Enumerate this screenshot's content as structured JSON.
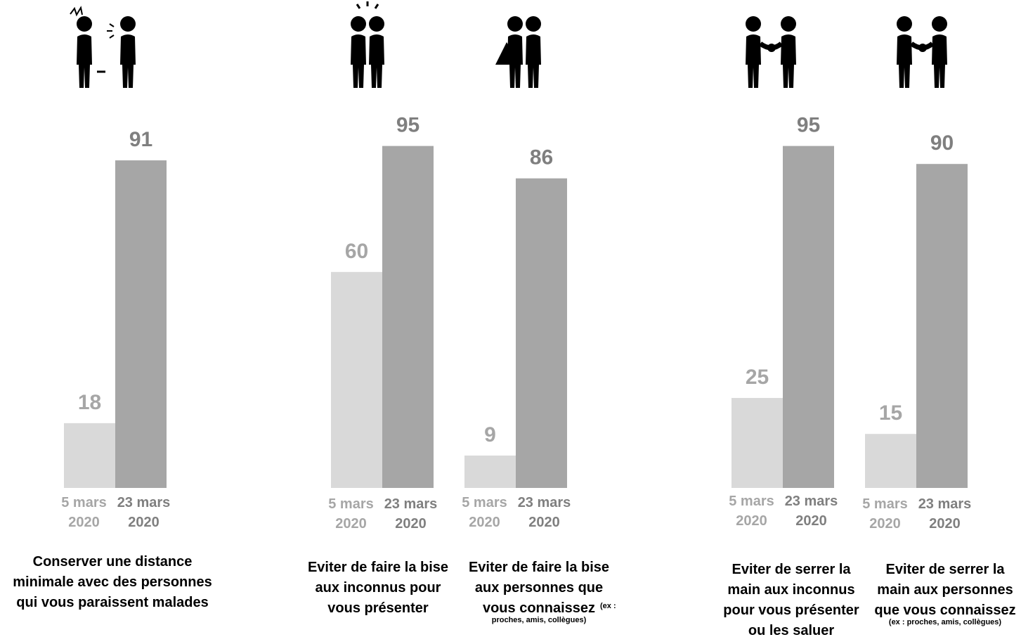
{
  "colors": {
    "before": "#d9d9d9",
    "after": "#a6a6a6",
    "before_text": "#a6a6a6",
    "after_text": "#7f7f7f",
    "icon": "#000000"
  },
  "chart_data": {
    "type": "bar",
    "series": [
      {
        "name": "5 mars 2020",
        "date_line1": "5 mars",
        "date_line2": "2020"
      },
      {
        "name": "23 mars 2020",
        "date_line1": "23 mars",
        "date_line2": "2020"
      }
    ],
    "groups": [
      {
        "icon": "distance-sick-icon",
        "values": [
          18,
          91
        ],
        "caption": [
          "Conserver une distance",
          "minimale avec des personnes",
          "qui vous paraissent malades"
        ],
        "caption_note": ""
      },
      {
        "icon": "kiss-strangers-icon",
        "values": [
          60,
          95
        ],
        "caption": [
          "Eviter de faire la bise",
          "aux inconnus pour",
          "vous présenter"
        ],
        "caption_note": ""
      },
      {
        "icon": "kiss-known-icon",
        "values": [
          9,
          86
        ],
        "caption": [
          "Eviter de faire la bise",
          "aux personnes que",
          "vous connaissez"
        ],
        "caption_note": "(ex :",
        "caption_note2": "proches, amis, collègues)"
      },
      {
        "icon": "handshake-strangers-icon",
        "values": [
          25,
          95
        ],
        "caption": [
          "Eviter de serrer la",
          "main aux inconnus",
          "pour vous présenter",
          "ou les saluer"
        ],
        "caption_note": ""
      },
      {
        "icon": "handshake-known-icon",
        "values": [
          15,
          90
        ],
        "caption": [
          "Eviter de serrer la",
          "main aux personnes",
          "que vous connaissez"
        ],
        "caption_note": "(ex : proches, amis, collègues)"
      }
    ],
    "ylim": [
      0,
      100
    ]
  }
}
